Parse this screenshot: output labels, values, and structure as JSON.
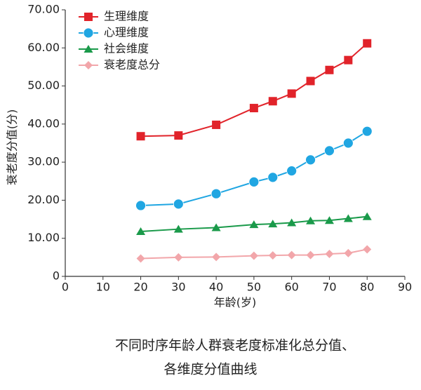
{
  "chart_data": {
    "type": "line",
    "x_label": "年龄(岁)",
    "y_label": "衰老度分值(分)",
    "caption": [
      "不同时序年龄人群衰老度标准化总分值、",
      "各维度分值曲线"
    ],
    "x": [
      20,
      30,
      40,
      50,
      55,
      60,
      65,
      70,
      75,
      80
    ],
    "xlim": [
      0,
      90
    ],
    "xticks": [
      0,
      10,
      20,
      30,
      40,
      50,
      60,
      70,
      80,
      90
    ],
    "ylim": [
      0,
      70
    ],
    "yticks": [
      0,
      {
        "value": 10,
        "label": "10.00"
      },
      {
        "value": 20,
        "label": "20.00"
      },
      {
        "value": 30,
        "label": "30.00"
      },
      {
        "value": 40,
        "label": "40.00"
      },
      {
        "value": 50,
        "label": "50.00"
      },
      {
        "value": 60,
        "label": "60.00"
      },
      {
        "value": 70,
        "label": "70.00"
      }
    ],
    "grid": false,
    "legend": "upper left",
    "series": [
      {
        "name": "生理维度",
        "color": "#e1232a",
        "marker": "square",
        "values": [
          36.8,
          37.0,
          39.8,
          44.2,
          46.0,
          48.0,
          51.3,
          54.2,
          56.8,
          61.2
        ]
      },
      {
        "name": "心理维度",
        "color": "#20a6e2",
        "marker": "circle",
        "values": [
          18.6,
          19.0,
          21.7,
          24.8,
          26.0,
          27.7,
          30.6,
          33.0,
          35.0,
          38.1
        ]
      },
      {
        "name": "社会维度",
        "color": "#1a9a4a",
        "marker": "triangle",
        "values": [
          11.8,
          12.4,
          12.8,
          13.6,
          13.8,
          14.1,
          14.6,
          14.7,
          15.2,
          15.7
        ]
      },
      {
        "name": "衰老度总分",
        "color": "#f2a6aa",
        "marker": "diamond",
        "values": [
          4.7,
          5.0,
          5.1,
          5.4,
          5.5,
          5.6,
          5.6,
          5.9,
          6.1,
          7.1
        ]
      }
    ]
  }
}
